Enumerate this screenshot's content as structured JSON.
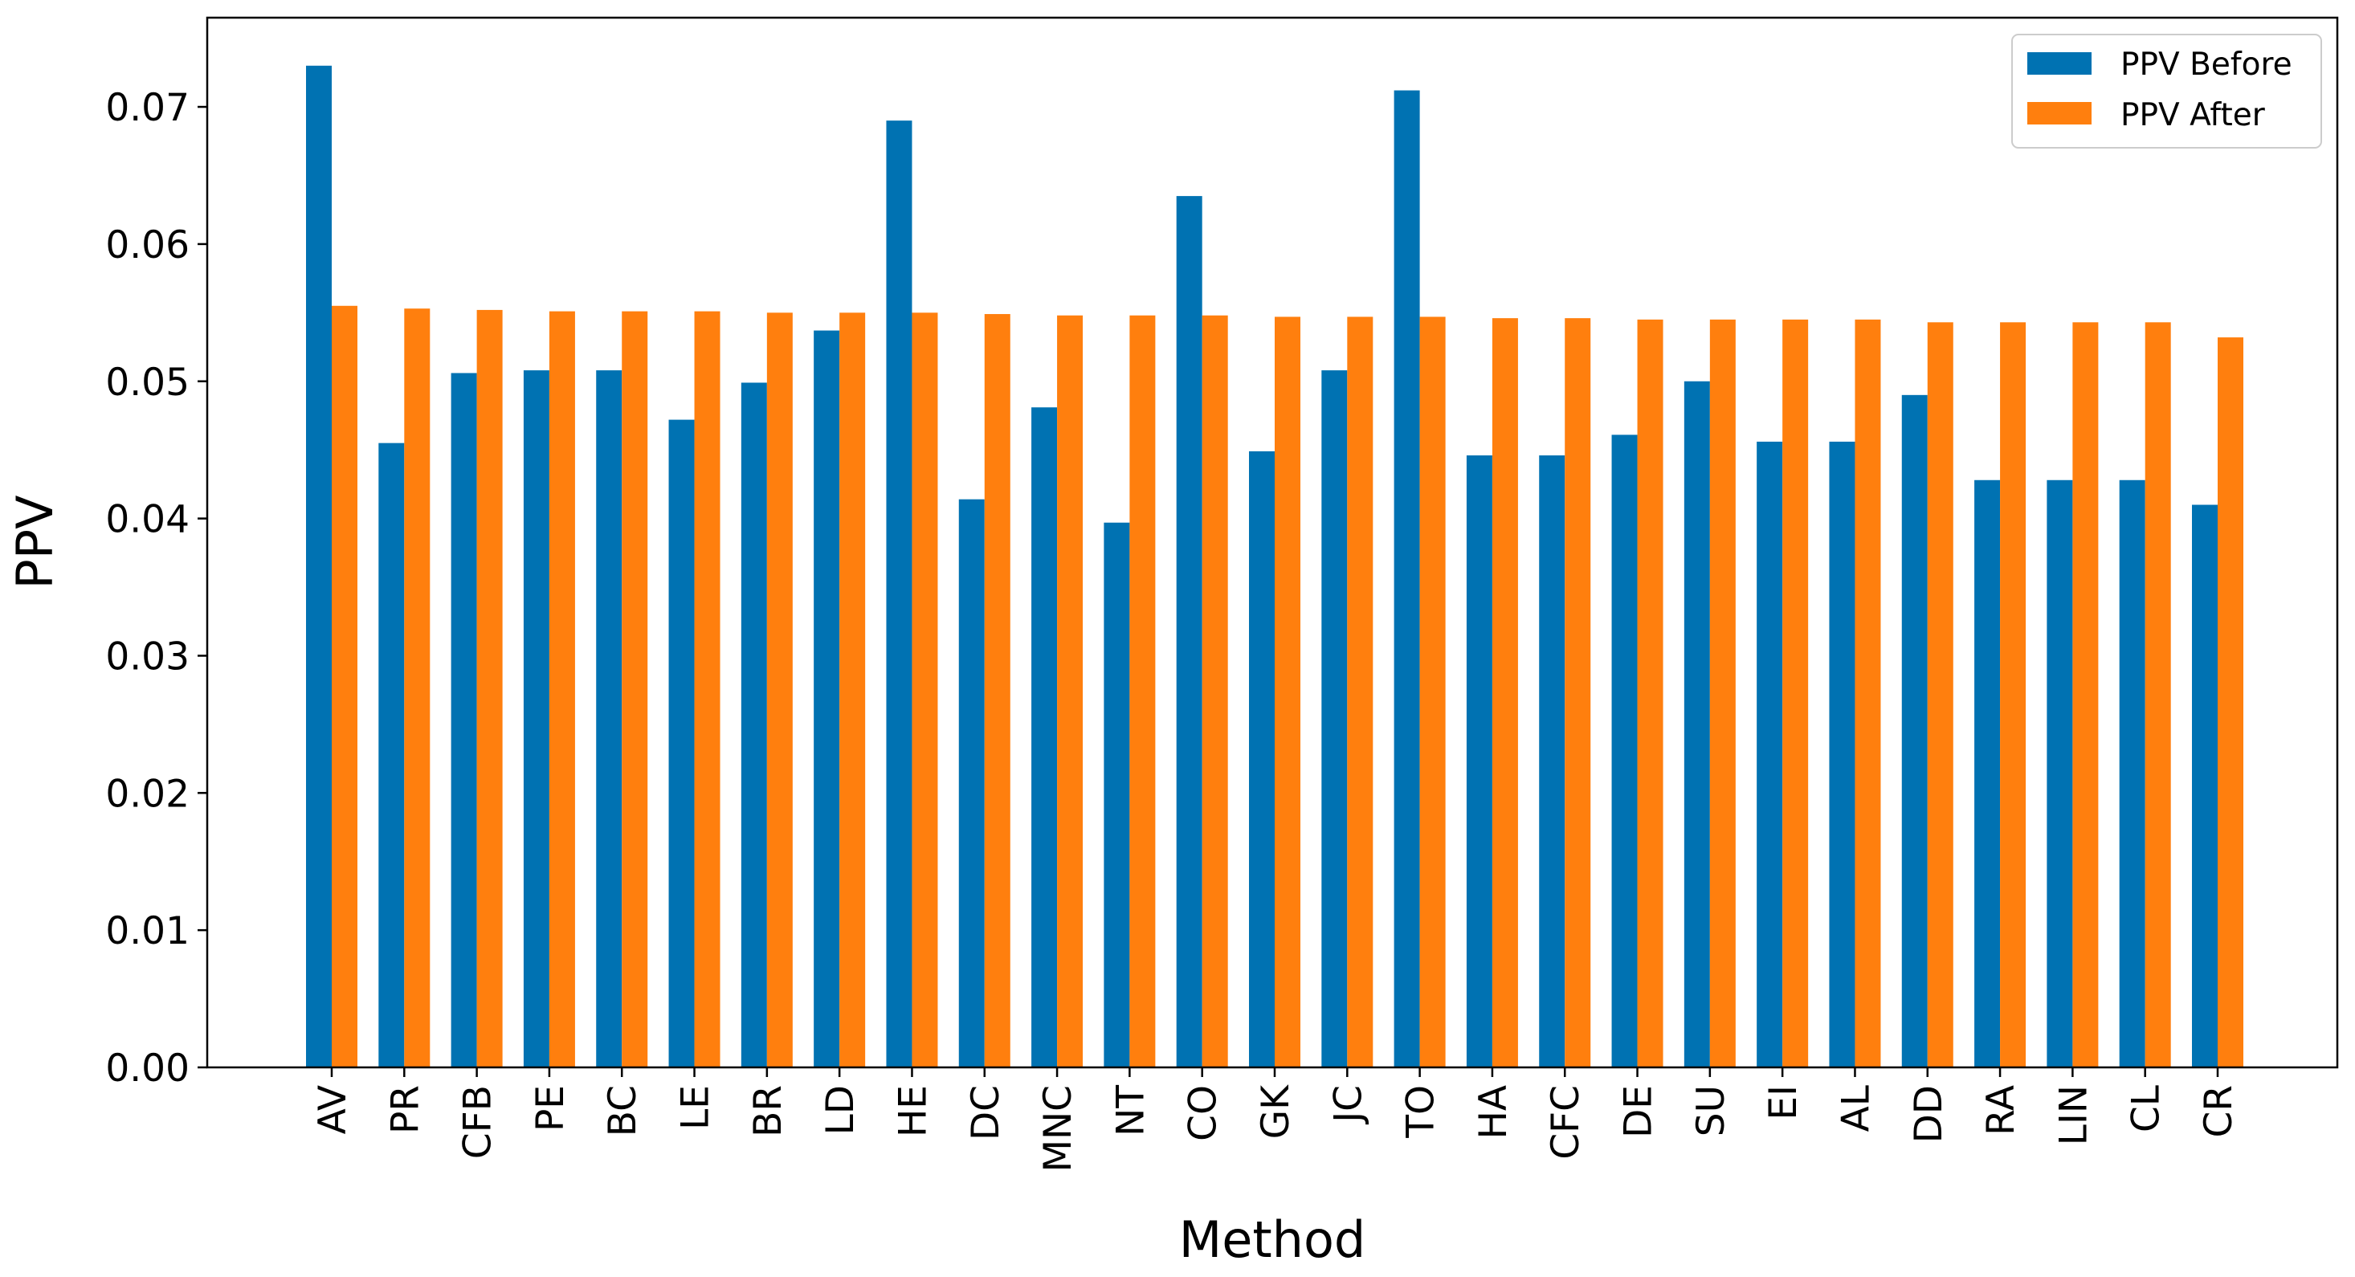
{
  "chart_data": {
    "type": "bar",
    "title": "",
    "xlabel": "Method",
    "ylabel": "PPV",
    "ylim": [
      0,
      0.0765
    ],
    "yticks": [
      "0.00",
      "0.01",
      "0.02",
      "0.03",
      "0.04",
      "0.05",
      "0.06",
      "0.07"
    ],
    "grid": false,
    "legend_position": "top-right",
    "categories": [
      "AV",
      "PR",
      "CFB",
      "PE",
      "BC",
      "LE",
      "BR",
      "LD",
      "HE",
      "DC",
      "MNC",
      "NT",
      "CO",
      "GK",
      "JC",
      "TO",
      "HA",
      "CFC",
      "DE",
      "SU",
      "EI",
      "AL",
      "DD",
      "RA",
      "LIN",
      "CL",
      "CR"
    ],
    "series": [
      {
        "name": "PPV Before",
        "color": "#0072b2",
        "values": [
          0.073,
          0.0455,
          0.0506,
          0.0508,
          0.0508,
          0.0472,
          0.0499,
          0.0537,
          0.069,
          0.0414,
          0.0481,
          0.0397,
          0.0635,
          0.0449,
          0.0508,
          0.0712,
          0.0446,
          0.0446,
          0.0461,
          0.05,
          0.0456,
          0.0456,
          0.049,
          0.0428,
          0.0428,
          0.0428,
          0.041
        ]
      },
      {
        "name": "PPV After",
        "color": "#ff7f0e",
        "values": [
          0.0555,
          0.0553,
          0.0552,
          0.0551,
          0.0551,
          0.0551,
          0.055,
          0.055,
          0.055,
          0.0549,
          0.0548,
          0.0548,
          0.0548,
          0.0547,
          0.0547,
          0.0547,
          0.0546,
          0.0546,
          0.0545,
          0.0545,
          0.0545,
          0.0545,
          0.0543,
          0.0543,
          0.0543,
          0.0543,
          0.0532
        ]
      }
    ]
  }
}
